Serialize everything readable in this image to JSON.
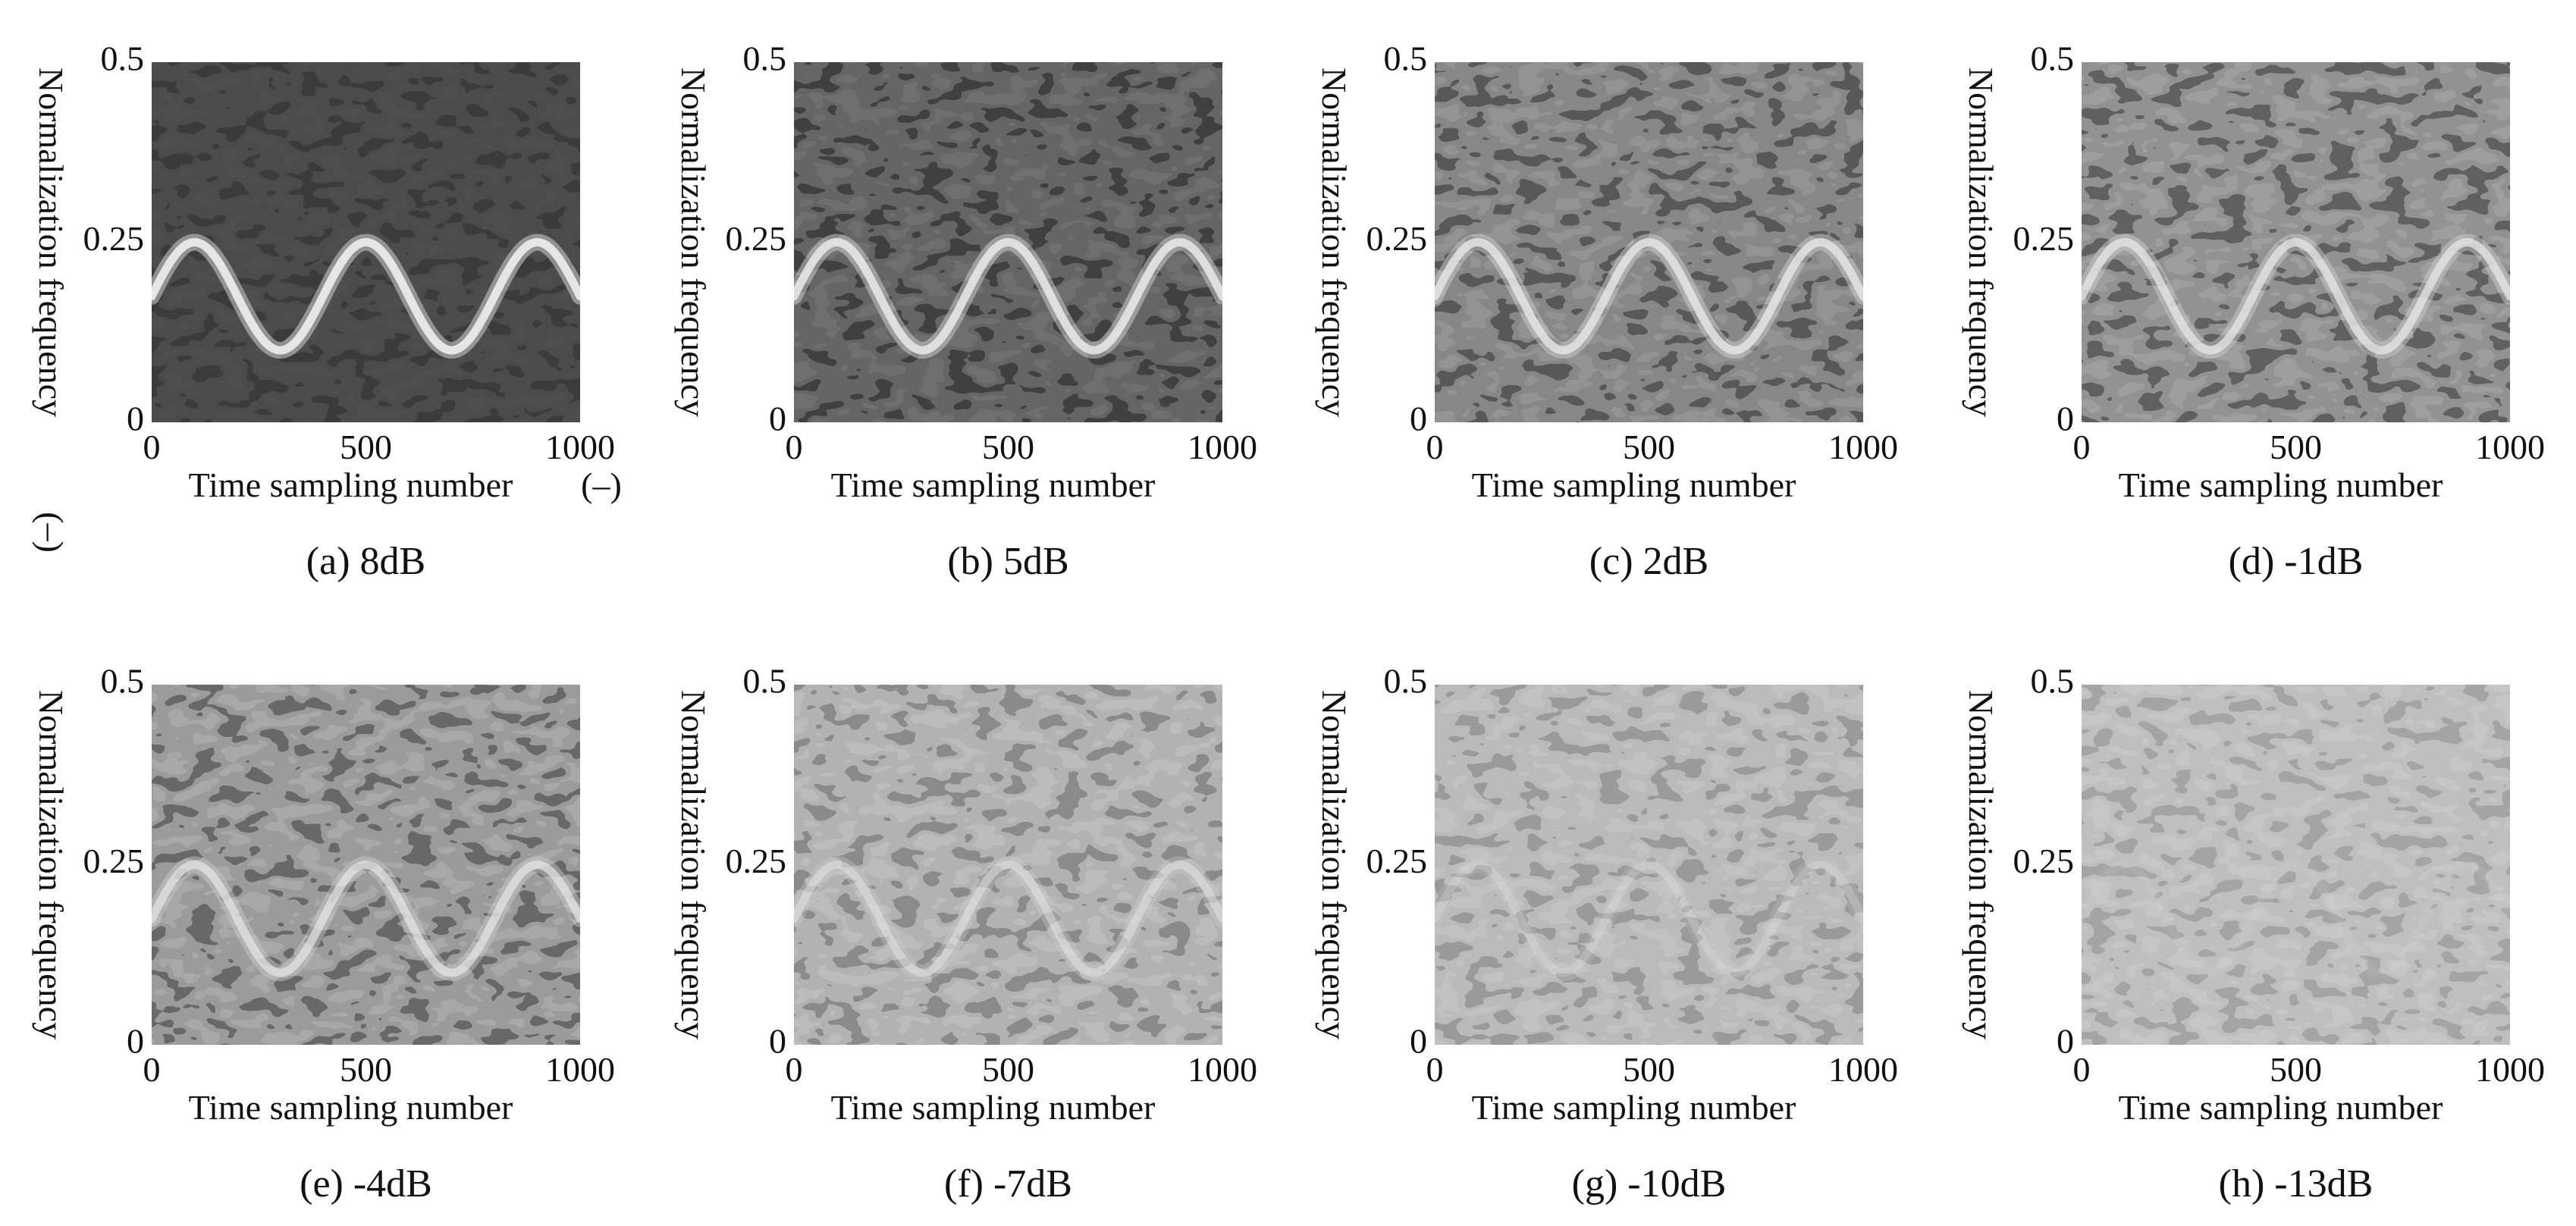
{
  "figure": {
    "shared_xlabel": "Time sampling number",
    "shared_ylabel": "Normalization frequency",
    "units_symbol": "(–)"
  },
  "chart_data": [
    {
      "type": "heatmap",
      "panel": "a",
      "caption": "(a) 8dB",
      "snr_db": 8,
      "xlabel": "Time sampling number",
      "ylabel": "Normalization frequency",
      "xticks": [
        0,
        500,
        1000
      ],
      "yticks": [
        0,
        0.25,
        0.5
      ],
      "xlim": [
        0,
        1000
      ],
      "ylim": [
        0,
        0.5
      ],
      "signal": {
        "shape": "sinusoid",
        "center": 0.175,
        "amplitude": 0.075,
        "period": 400,
        "peak_at": 100,
        "visibility": 1.0
      },
      "background": "#3b3b3b",
      "noise_level": 0.12,
      "show_units": true
    },
    {
      "type": "heatmap",
      "panel": "b",
      "caption": "(b) 5dB",
      "snr_db": 5,
      "xlabel": "Time sampling number",
      "ylabel": "Normalization frequency",
      "xticks": [
        0,
        500,
        1000
      ],
      "yticks": [
        0,
        0.25,
        0.5
      ],
      "xlim": [
        0,
        1000
      ],
      "ylim": [
        0,
        0.5
      ],
      "signal": {
        "shape": "sinusoid",
        "center": 0.175,
        "amplitude": 0.075,
        "period": 400,
        "peak_at": 100,
        "visibility": 0.95
      },
      "background": "#404040",
      "noise_level": 0.3,
      "show_units": false
    },
    {
      "type": "heatmap",
      "panel": "c",
      "caption": "(c) 2dB",
      "snr_db": 2,
      "xlabel": "Time sampling number",
      "ylabel": "Normalization frequency",
      "xticks": [
        0,
        500,
        1000
      ],
      "yticks": [
        0,
        0.25,
        0.5
      ],
      "xlim": [
        0,
        1000
      ],
      "ylim": [
        0,
        0.5
      ],
      "signal": {
        "shape": "sinusoid",
        "center": 0.175,
        "amplitude": 0.075,
        "period": 400,
        "peak_at": 100,
        "visibility": 0.9
      },
      "background": "#585858",
      "noise_level": 0.45,
      "show_units": false
    },
    {
      "type": "heatmap",
      "panel": "d",
      "caption": "(d) -1dB",
      "snr_db": -1,
      "xlabel": "Time sampling number",
      "ylabel": "Normalization frequency",
      "xticks": [
        0,
        500,
        1000
      ],
      "yticks": [
        0,
        0.25,
        0.5
      ],
      "xlim": [
        0,
        1000
      ],
      "ylim": [
        0,
        0.5
      ],
      "signal": {
        "shape": "sinusoid",
        "center": 0.175,
        "amplitude": 0.075,
        "period": 400,
        "peak_at": 100,
        "visibility": 0.85
      },
      "background": "#606060",
      "noise_level": 0.5,
      "show_units": false
    },
    {
      "type": "heatmap",
      "panel": "e",
      "caption": "(e) -4dB",
      "snr_db": -4,
      "xlabel": "Time sampling number",
      "ylabel": "Normalization frequency",
      "xticks": [
        0,
        500,
        1000
      ],
      "yticks": [
        0,
        0.25,
        0.5
      ],
      "xlim": [
        0,
        1000
      ],
      "ylim": [
        0,
        0.5
      ],
      "signal": {
        "shape": "sinusoid",
        "center": 0.175,
        "amplitude": 0.075,
        "period": 400,
        "peak_at": 100,
        "visibility": 0.8
      },
      "background": "#686868",
      "noise_level": 0.55,
      "show_units": false
    },
    {
      "type": "heatmap",
      "panel": "f",
      "caption": "(f) -7dB",
      "snr_db": -7,
      "xlabel": "Time sampling number",
      "ylabel": "Normalization frequency",
      "xticks": [
        0,
        500,
        1000
      ],
      "yticks": [
        0,
        0.25,
        0.5
      ],
      "xlim": [
        0,
        1000
      ],
      "ylim": [
        0,
        0.5
      ],
      "signal": {
        "shape": "sinusoid",
        "center": 0.175,
        "amplitude": 0.075,
        "period": 400,
        "peak_at": 100,
        "visibility": 0.6
      },
      "background": "#8a8a8a",
      "noise_level": 0.6,
      "show_units": false
    },
    {
      "type": "heatmap",
      "panel": "g",
      "caption": "(g) -10dB",
      "snr_db": -10,
      "xlabel": "Time sampling number",
      "ylabel": "Normalization frequency",
      "xticks": [
        0,
        500,
        1000
      ],
      "yticks": [
        0,
        0.25,
        0.5
      ],
      "xlim": [
        0,
        1000
      ],
      "ylim": [
        0,
        0.5
      ],
      "signal": {
        "shape": "sinusoid",
        "center": 0.175,
        "amplitude": 0.075,
        "period": 400,
        "peak_at": 100,
        "visibility": 0.35
      },
      "background": "#9a9a9a",
      "noise_level": 0.6,
      "show_units": false
    },
    {
      "type": "heatmap",
      "panel": "h",
      "caption": "(h) -13dB",
      "snr_db": -13,
      "xlabel": "Time sampling number",
      "ylabel": "Normalization frequency",
      "xticks": [
        0,
        500,
        1000
      ],
      "yticks": [
        0,
        0.25,
        0.5
      ],
      "xlim": [
        0,
        1000
      ],
      "ylim": [
        0,
        0.5
      ],
      "signal": {
        "shape": "sinusoid",
        "center": 0.175,
        "amplitude": 0.075,
        "period": 400,
        "peak_at": 100,
        "visibility": 0.12
      },
      "background": "#a4a4a4",
      "noise_level": 0.6,
      "show_units": false
    }
  ]
}
